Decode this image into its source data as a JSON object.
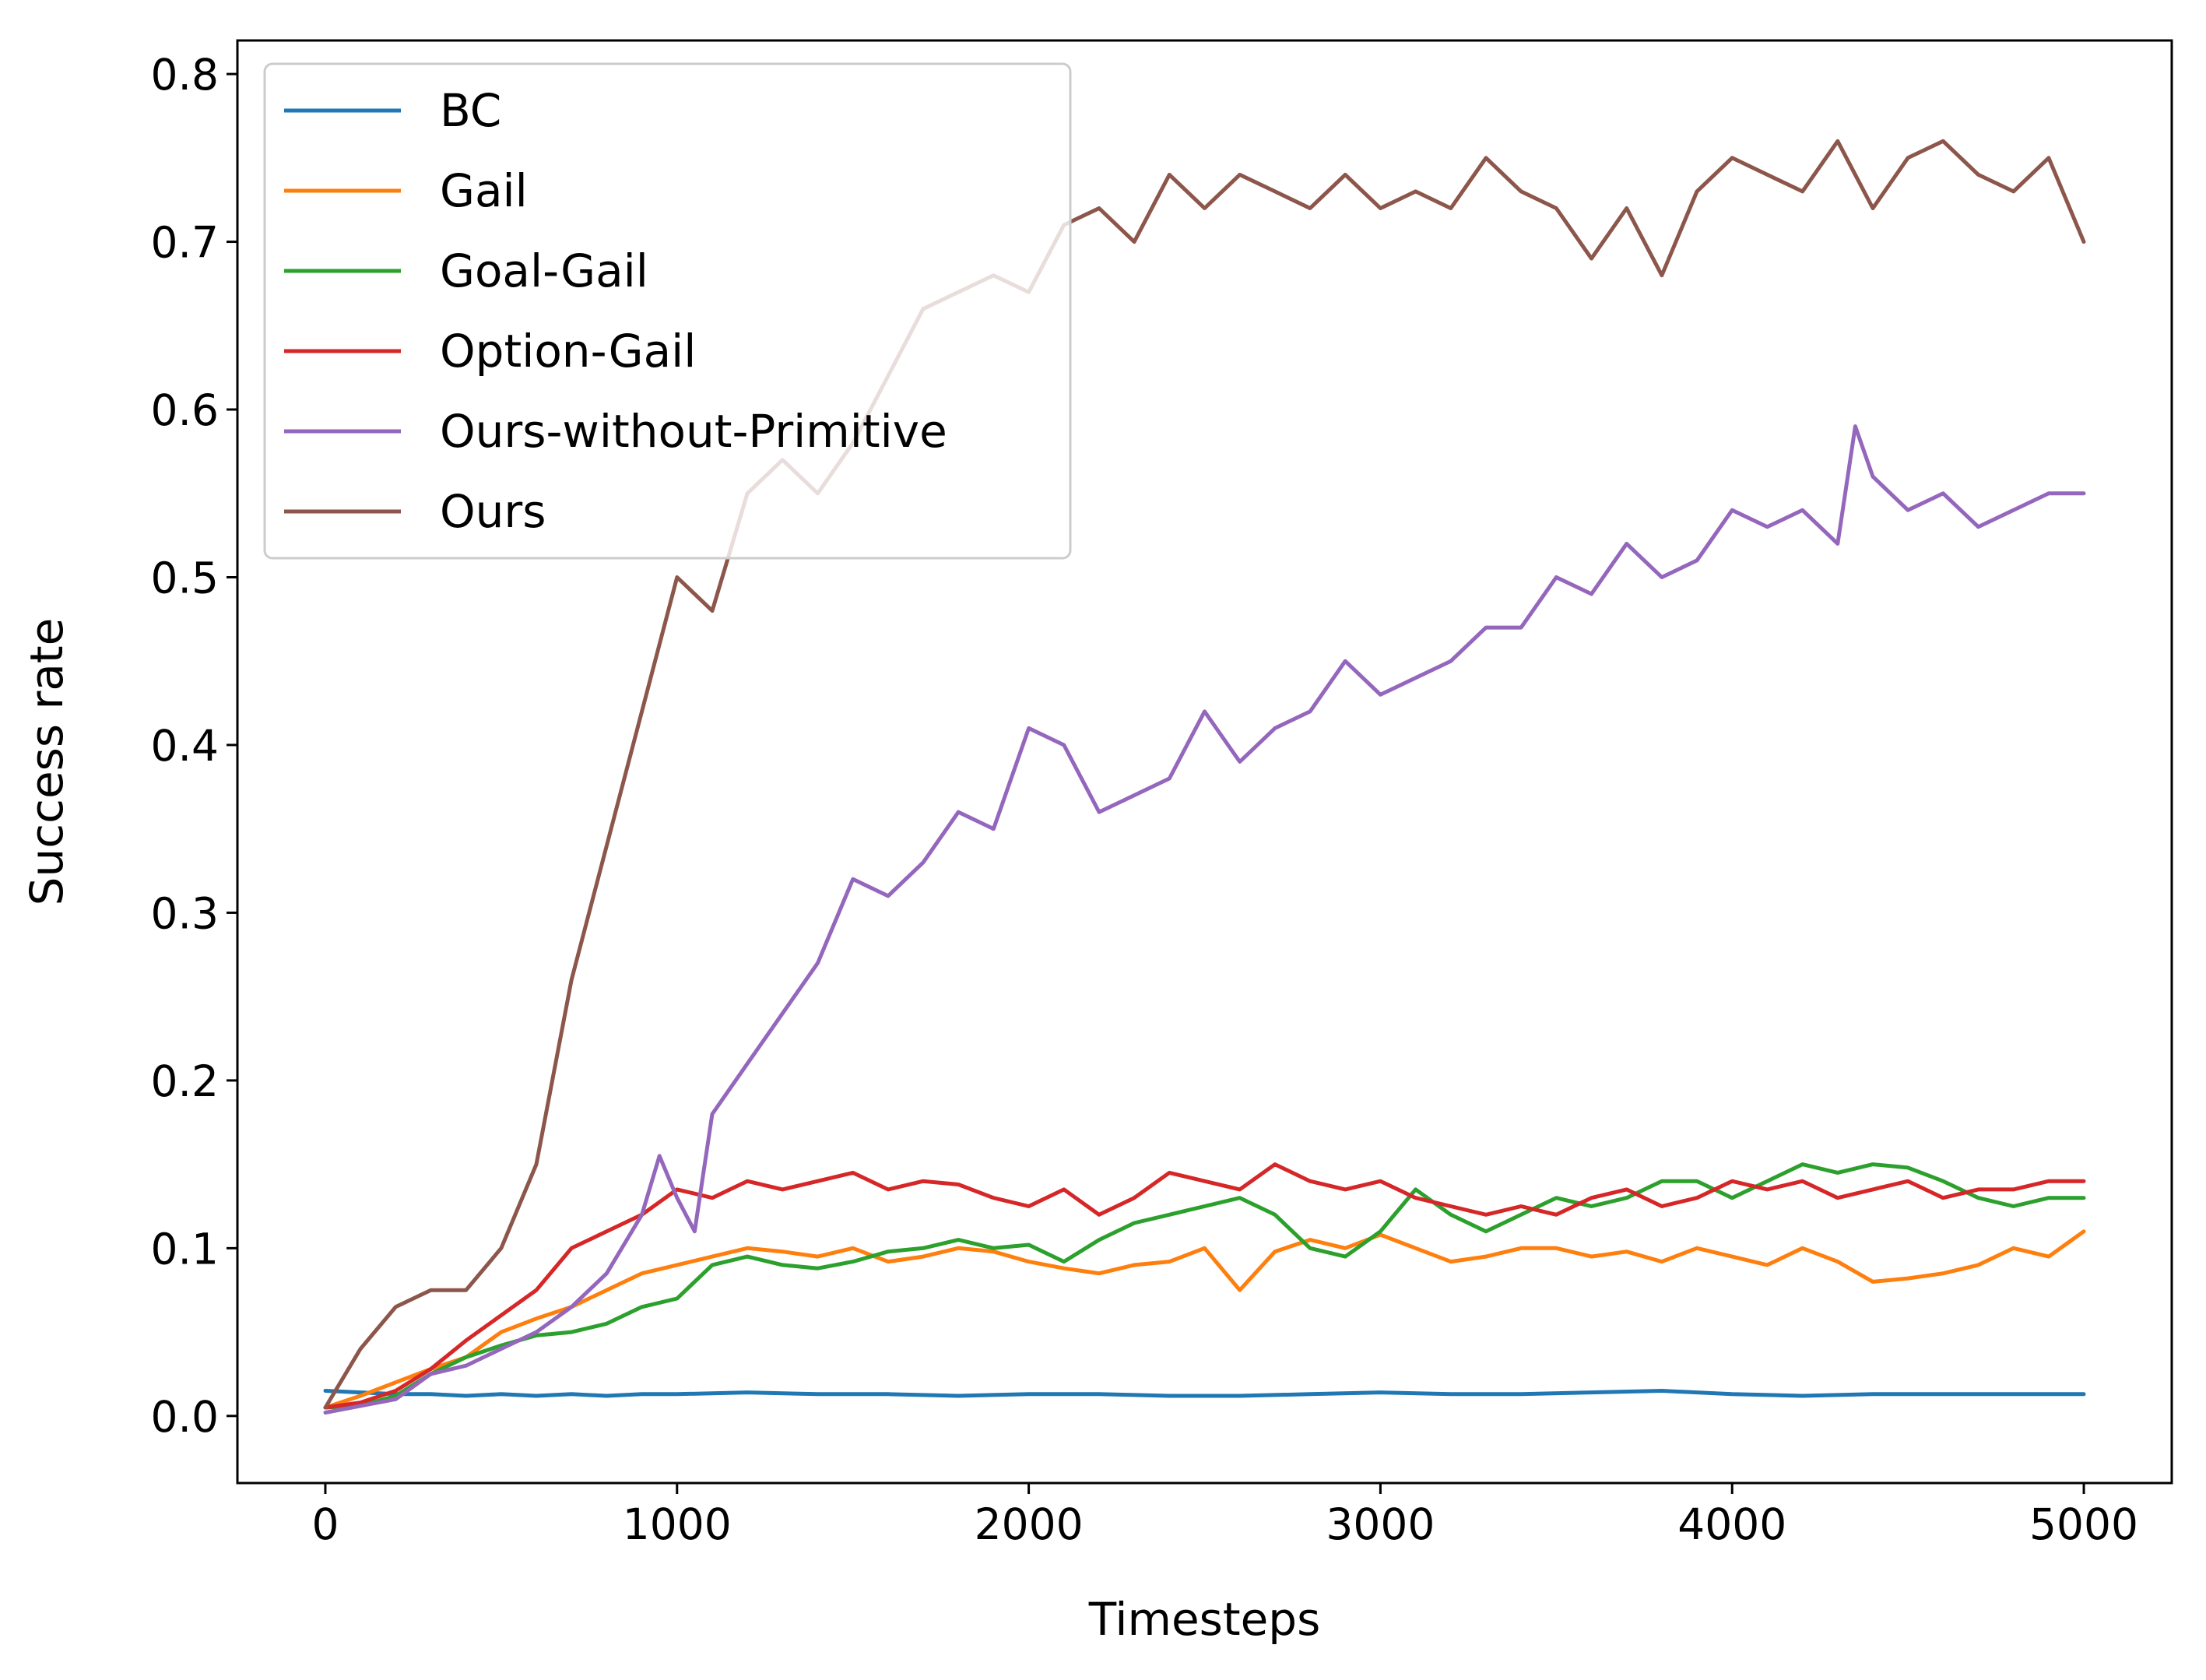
{
  "chart_data": {
    "type": "line",
    "title": "",
    "xlabel": "Timesteps",
    "ylabel": "Success rate",
    "xlim": [
      -250,
      5250
    ],
    "ylim": [
      -0.04,
      0.82
    ],
    "xticks": [
      0,
      1000,
      2000,
      3000,
      4000,
      5000
    ],
    "xtick_labels": [
      "0",
      "1000",
      "2000",
      "3000",
      "4000",
      "5000"
    ],
    "yticks": [
      0.0,
      0.1,
      0.2,
      0.3,
      0.4,
      0.5,
      0.6,
      0.7,
      0.8
    ],
    "ytick_labels": [
      "0.0",
      "0.1",
      "0.2",
      "0.3",
      "0.4",
      "0.5",
      "0.6",
      "0.7",
      "0.8"
    ],
    "grid": false,
    "legend_position": "top-left",
    "series": [
      {
        "name": "BC",
        "color": "#1f77b4",
        "x": [
          0,
          100,
          200,
          300,
          400,
          500,
          600,
          700,
          800,
          900,
          1000,
          1200,
          1400,
          1600,
          1800,
          2000,
          2200,
          2400,
          2600,
          2800,
          3000,
          3200,
          3400,
          3600,
          3800,
          4000,
          4200,
          4400,
          4600,
          4800,
          5000
        ],
        "y": [
          0.015,
          0.014,
          0.013,
          0.013,
          0.012,
          0.013,
          0.012,
          0.013,
          0.012,
          0.013,
          0.013,
          0.014,
          0.013,
          0.013,
          0.012,
          0.013,
          0.013,
          0.012,
          0.012,
          0.013,
          0.014,
          0.013,
          0.013,
          0.014,
          0.015,
          0.013,
          0.012,
          0.013,
          0.013,
          0.013,
          0.013
        ]
      },
      {
        "name": "Gail",
        "color": "#ff7f0e",
        "x": [
          0,
          100,
          200,
          300,
          400,
          500,
          600,
          700,
          800,
          900,
          1000,
          1100,
          1200,
          1300,
          1400,
          1500,
          1600,
          1700,
          1800,
          1900,
          2000,
          2100,
          2200,
          2300,
          2400,
          2500,
          2600,
          2700,
          2800,
          2900,
          3000,
          3100,
          3200,
          3300,
          3400,
          3500,
          3600,
          3700,
          3800,
          3900,
          4000,
          4100,
          4200,
          4300,
          4400,
          4500,
          4600,
          4700,
          4800,
          4900,
          5000
        ],
        "y": [
          0.005,
          0.012,
          0.02,
          0.028,
          0.035,
          0.05,
          0.058,
          0.065,
          0.075,
          0.085,
          0.09,
          0.095,
          0.1,
          0.098,
          0.095,
          0.1,
          0.092,
          0.095,
          0.1,
          0.098,
          0.092,
          0.088,
          0.085,
          0.09,
          0.092,
          0.1,
          0.075,
          0.098,
          0.105,
          0.1,
          0.108,
          0.1,
          0.092,
          0.095,
          0.1,
          0.1,
          0.095,
          0.098,
          0.092,
          0.1,
          0.095,
          0.09,
          0.1,
          0.092,
          0.08,
          0.082,
          0.085,
          0.09,
          0.1,
          0.095,
          0.11
        ]
      },
      {
        "name": "Goal-Gail",
        "color": "#2ca02c",
        "x": [
          0,
          100,
          200,
          300,
          400,
          500,
          600,
          700,
          800,
          900,
          1000,
          1100,
          1200,
          1300,
          1400,
          1500,
          1600,
          1700,
          1800,
          1900,
          2000,
          2100,
          2200,
          2300,
          2400,
          2500,
          2600,
          2700,
          2800,
          2900,
          3000,
          3100,
          3200,
          3300,
          3400,
          3500,
          3600,
          3700,
          3800,
          3900,
          4000,
          4100,
          4200,
          4300,
          4400,
          4500,
          4600,
          4700,
          4800,
          4900,
          5000
        ],
        "y": [
          0.005,
          0.006,
          0.012,
          0.025,
          0.035,
          0.042,
          0.048,
          0.05,
          0.055,
          0.065,
          0.07,
          0.09,
          0.095,
          0.09,
          0.088,
          0.092,
          0.098,
          0.1,
          0.105,
          0.1,
          0.102,
          0.092,
          0.105,
          0.115,
          0.12,
          0.125,
          0.13,
          0.12,
          0.1,
          0.095,
          0.11,
          0.135,
          0.12,
          0.11,
          0.12,
          0.13,
          0.125,
          0.13,
          0.14,
          0.14,
          0.13,
          0.14,
          0.15,
          0.145,
          0.15,
          0.148,
          0.14,
          0.13,
          0.125,
          0.13,
          0.13
        ]
      },
      {
        "name": "Option-Gail",
        "color": "#d62728",
        "x": [
          0,
          100,
          200,
          300,
          400,
          500,
          600,
          700,
          800,
          900,
          1000,
          1100,
          1200,
          1300,
          1400,
          1500,
          1600,
          1700,
          1800,
          1900,
          2000,
          2100,
          2200,
          2300,
          2400,
          2500,
          2600,
          2700,
          2800,
          2900,
          3000,
          3100,
          3200,
          3300,
          3400,
          3500,
          3600,
          3700,
          3800,
          3900,
          4000,
          4100,
          4200,
          4300,
          4400,
          4500,
          4600,
          4700,
          4800,
          4900,
          5000
        ],
        "y": [
          0.005,
          0.008,
          0.015,
          0.028,
          0.045,
          0.06,
          0.075,
          0.1,
          0.11,
          0.12,
          0.135,
          0.13,
          0.14,
          0.135,
          0.14,
          0.145,
          0.135,
          0.14,
          0.138,
          0.13,
          0.125,
          0.135,
          0.12,
          0.13,
          0.145,
          0.14,
          0.135,
          0.15,
          0.14,
          0.135,
          0.14,
          0.13,
          0.125,
          0.12,
          0.125,
          0.12,
          0.13,
          0.135,
          0.125,
          0.13,
          0.14,
          0.135,
          0.14,
          0.13,
          0.135,
          0.14,
          0.13,
          0.135,
          0.135,
          0.14,
          0.14
        ]
      },
      {
        "name": "Ours-without-Primitive",
        "color": "#9467bd",
        "x": [
          0,
          100,
          200,
          300,
          400,
          500,
          600,
          700,
          800,
          900,
          950,
          1000,
          1050,
          1100,
          1200,
          1300,
          1400,
          1500,
          1600,
          1700,
          1800,
          1900,
          2000,
          2100,
          2200,
          2300,
          2400,
          2500,
          2600,
          2700,
          2800,
          2900,
          3000,
          3100,
          3200,
          3300,
          3400,
          3500,
          3600,
          3700,
          3800,
          3900,
          4000,
          4100,
          4200,
          4300,
          4350,
          4400,
          4500,
          4600,
          4700,
          4800,
          4900,
          5000
        ],
        "y": [
          0.002,
          0.006,
          0.01,
          0.025,
          0.03,
          0.04,
          0.05,
          0.065,
          0.085,
          0.12,
          0.155,
          0.13,
          0.11,
          0.18,
          0.21,
          0.24,
          0.27,
          0.32,
          0.31,
          0.33,
          0.36,
          0.35,
          0.41,
          0.4,
          0.36,
          0.37,
          0.38,
          0.42,
          0.39,
          0.41,
          0.42,
          0.45,
          0.43,
          0.44,
          0.45,
          0.47,
          0.47,
          0.5,
          0.49,
          0.52,
          0.5,
          0.51,
          0.54,
          0.53,
          0.54,
          0.52,
          0.59,
          0.56,
          0.54,
          0.55,
          0.53,
          0.54,
          0.55,
          0.55
        ]
      },
      {
        "name": "Ours",
        "color": "#8c564b",
        "x": [
          0,
          100,
          200,
          300,
          400,
          500,
          600,
          700,
          800,
          900,
          1000,
          1100,
          1200,
          1300,
          1400,
          1500,
          1600,
          1700,
          1800,
          1900,
          2000,
          2100,
          2200,
          2300,
          2400,
          2500,
          2600,
          2700,
          2800,
          2900,
          3000,
          3100,
          3200,
          3300,
          3400,
          3500,
          3600,
          3700,
          3800,
          3900,
          4000,
          4100,
          4200,
          4300,
          4400,
          4500,
          4600,
          4700,
          4800,
          4900,
          5000
        ],
        "y": [
          0.005,
          0.04,
          0.065,
          0.075,
          0.075,
          0.1,
          0.15,
          0.26,
          0.34,
          0.42,
          0.5,
          0.48,
          0.55,
          0.57,
          0.55,
          0.58,
          0.62,
          0.66,
          0.67,
          0.68,
          0.67,
          0.71,
          0.72,
          0.7,
          0.74,
          0.72,
          0.74,
          0.73,
          0.72,
          0.74,
          0.72,
          0.73,
          0.72,
          0.75,
          0.73,
          0.72,
          0.69,
          0.72,
          0.68,
          0.73,
          0.75,
          0.74,
          0.73,
          0.76,
          0.72,
          0.75,
          0.76,
          0.74,
          0.73,
          0.75,
          0.7
        ]
      }
    ]
  }
}
